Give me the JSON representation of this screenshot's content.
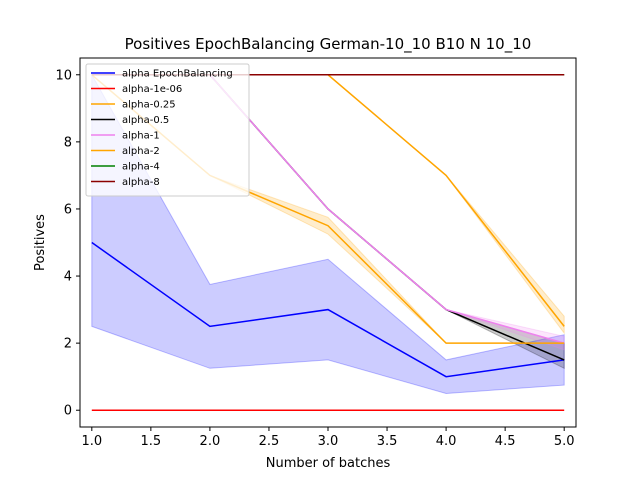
{
  "chart_data": {
    "type": "line",
    "title": "Positives EpochBalancing German-10_10 B10 N 10_10",
    "xlabel": "Number of batches",
    "ylabel": "Positives",
    "xlim": [
      0.9,
      5.1
    ],
    "ylim": [
      -0.5,
      10.5
    ],
    "xticks": [
      1.0,
      1.5,
      2.0,
      2.5,
      3.0,
      3.5,
      4.0,
      4.5,
      5.0
    ],
    "xtick_labels": [
      "1.0",
      "1.5",
      "2.0",
      "2.5",
      "3.0",
      "3.5",
      "4.0",
      "4.5",
      "5.0"
    ],
    "yticks": [
      0,
      2,
      4,
      6,
      8,
      10
    ],
    "ytick_labels": [
      "0",
      "2",
      "4",
      "6",
      "8",
      "10"
    ],
    "grid": false,
    "legend_position": "top-left",
    "x": [
      1,
      2,
      3,
      4,
      5
    ],
    "series": [
      {
        "name": "alpha EpochBalancing",
        "color": "#0000ff",
        "values": [
          5,
          2.5,
          3,
          1,
          1.5
        ],
        "band_low": [
          2.5,
          1.25,
          1.5,
          0.5,
          0.75
        ],
        "band_high": [
          10,
          3.75,
          4.5,
          1.5,
          2.25
        ]
      },
      {
        "name": "alpha-1e-06",
        "color": "#ff0000",
        "values": [
          0,
          0,
          0,
          0,
          0
        ]
      },
      {
        "name": "alpha-0.25",
        "color": "#ffa500",
        "values": [
          10,
          10,
          10,
          7,
          2.5
        ],
        "band_low": [
          10,
          10,
          10,
          7,
          2.3
        ],
        "band_high": [
          10,
          10,
          10,
          7,
          2.8
        ]
      },
      {
        "name": "alpha-0.5",
        "color": "#000000",
        "values": [
          10,
          10,
          6,
          3,
          1.5
        ],
        "band_low": [
          10,
          10,
          6,
          3,
          1.25
        ],
        "band_high": [
          10,
          10,
          6,
          3,
          2.0
        ]
      },
      {
        "name": "alpha-1",
        "color": "#ee82ee",
        "values": [
          10,
          10,
          6,
          3,
          2
        ],
        "band_low": [
          10,
          10,
          6,
          3,
          1.8
        ],
        "band_high": [
          10,
          10,
          6,
          3,
          2.2
        ]
      },
      {
        "name": "alpha-2",
        "color": "#ffa500",
        "values": [
          10,
          7,
          5.5,
          2,
          2
        ],
        "band_low": [
          10,
          7,
          5.25,
          2,
          2
        ],
        "band_high": [
          10,
          7,
          5.75,
          2,
          2
        ]
      },
      {
        "name": "alpha-4",
        "color": "#008000",
        "values": [
          10,
          10,
          10,
          10,
          10
        ]
      },
      {
        "name": "alpha-8",
        "color": "#8b0000",
        "values": [
          10,
          10,
          10,
          10,
          10
        ]
      }
    ]
  }
}
